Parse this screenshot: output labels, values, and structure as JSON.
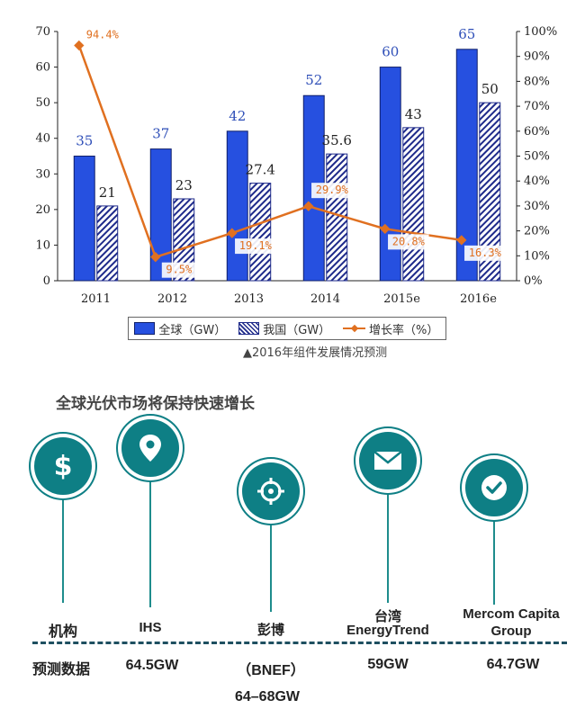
{
  "chart_data": {
    "type": "bar",
    "categories": [
      "2011",
      "2012",
      "2013",
      "2014",
      "2015e",
      "2016e"
    ],
    "series": [
      {
        "name": "全球（GW）",
        "values": [
          35,
          37,
          42,
          52,
          60,
          65
        ],
        "color": "#2650e0",
        "labels": [
          "35",
          "37",
          "42",
          "52",
          "60",
          "65"
        ]
      },
      {
        "name": "我国（GW）",
        "values": [
          21,
          23,
          27.4,
          35.6,
          43,
          50
        ],
        "color": "#1e2a8a",
        "labels": [
          "21",
          "23",
          "27.4",
          "35.6",
          "43",
          "50"
        ]
      },
      {
        "name": "增长率（%）",
        "type": "line",
        "axis": "right",
        "values": [
          94.4,
          9.5,
          19.1,
          29.9,
          20.8,
          16.3
        ],
        "color": "#e07020",
        "labels": [
          "94.4%",
          "9.5%",
          "19.1%",
          "29.9%",
          "20.8%",
          "16.3%"
        ]
      }
    ],
    "ylim": [
      0,
      70
    ],
    "yticks": [
      "0",
      "10",
      "20",
      "30",
      "40",
      "50",
      "60",
      "70"
    ],
    "y2lim": [
      0,
      100
    ],
    "y2ticks": [
      "0%",
      "10%",
      "20%",
      "30%",
      "40%",
      "50%",
      "60%",
      "70%",
      "80%",
      "90%",
      "100%"
    ],
    "legend_position": "bottom",
    "caption": "▲2016年组件发展情况预测"
  },
  "forecast": {
    "title": "全球光伏市场将保持快速增长",
    "row_labels": {
      "institution": "机构",
      "data": "预测数据"
    },
    "institutions": [
      {
        "name": "IHS",
        "value": "64.5GW",
        "icon": "dollar-icon"
      },
      {
        "name": "彭博",
        "value_prefix": "（BNEF）",
        "value": "64–68GW",
        "icon": "target-icon"
      },
      {
        "name_line1": "台湾",
        "name_line2": "EnergyTrend",
        "value": "59GW",
        "icon": "envelope-icon"
      },
      {
        "name_line1": "Mercom Capita",
        "name_line2": "Group",
        "value": "64.7GW",
        "icon": "check-icon"
      }
    ],
    "icon_color": "#0e7f85",
    "location_icon": "location-pin-icon"
  }
}
